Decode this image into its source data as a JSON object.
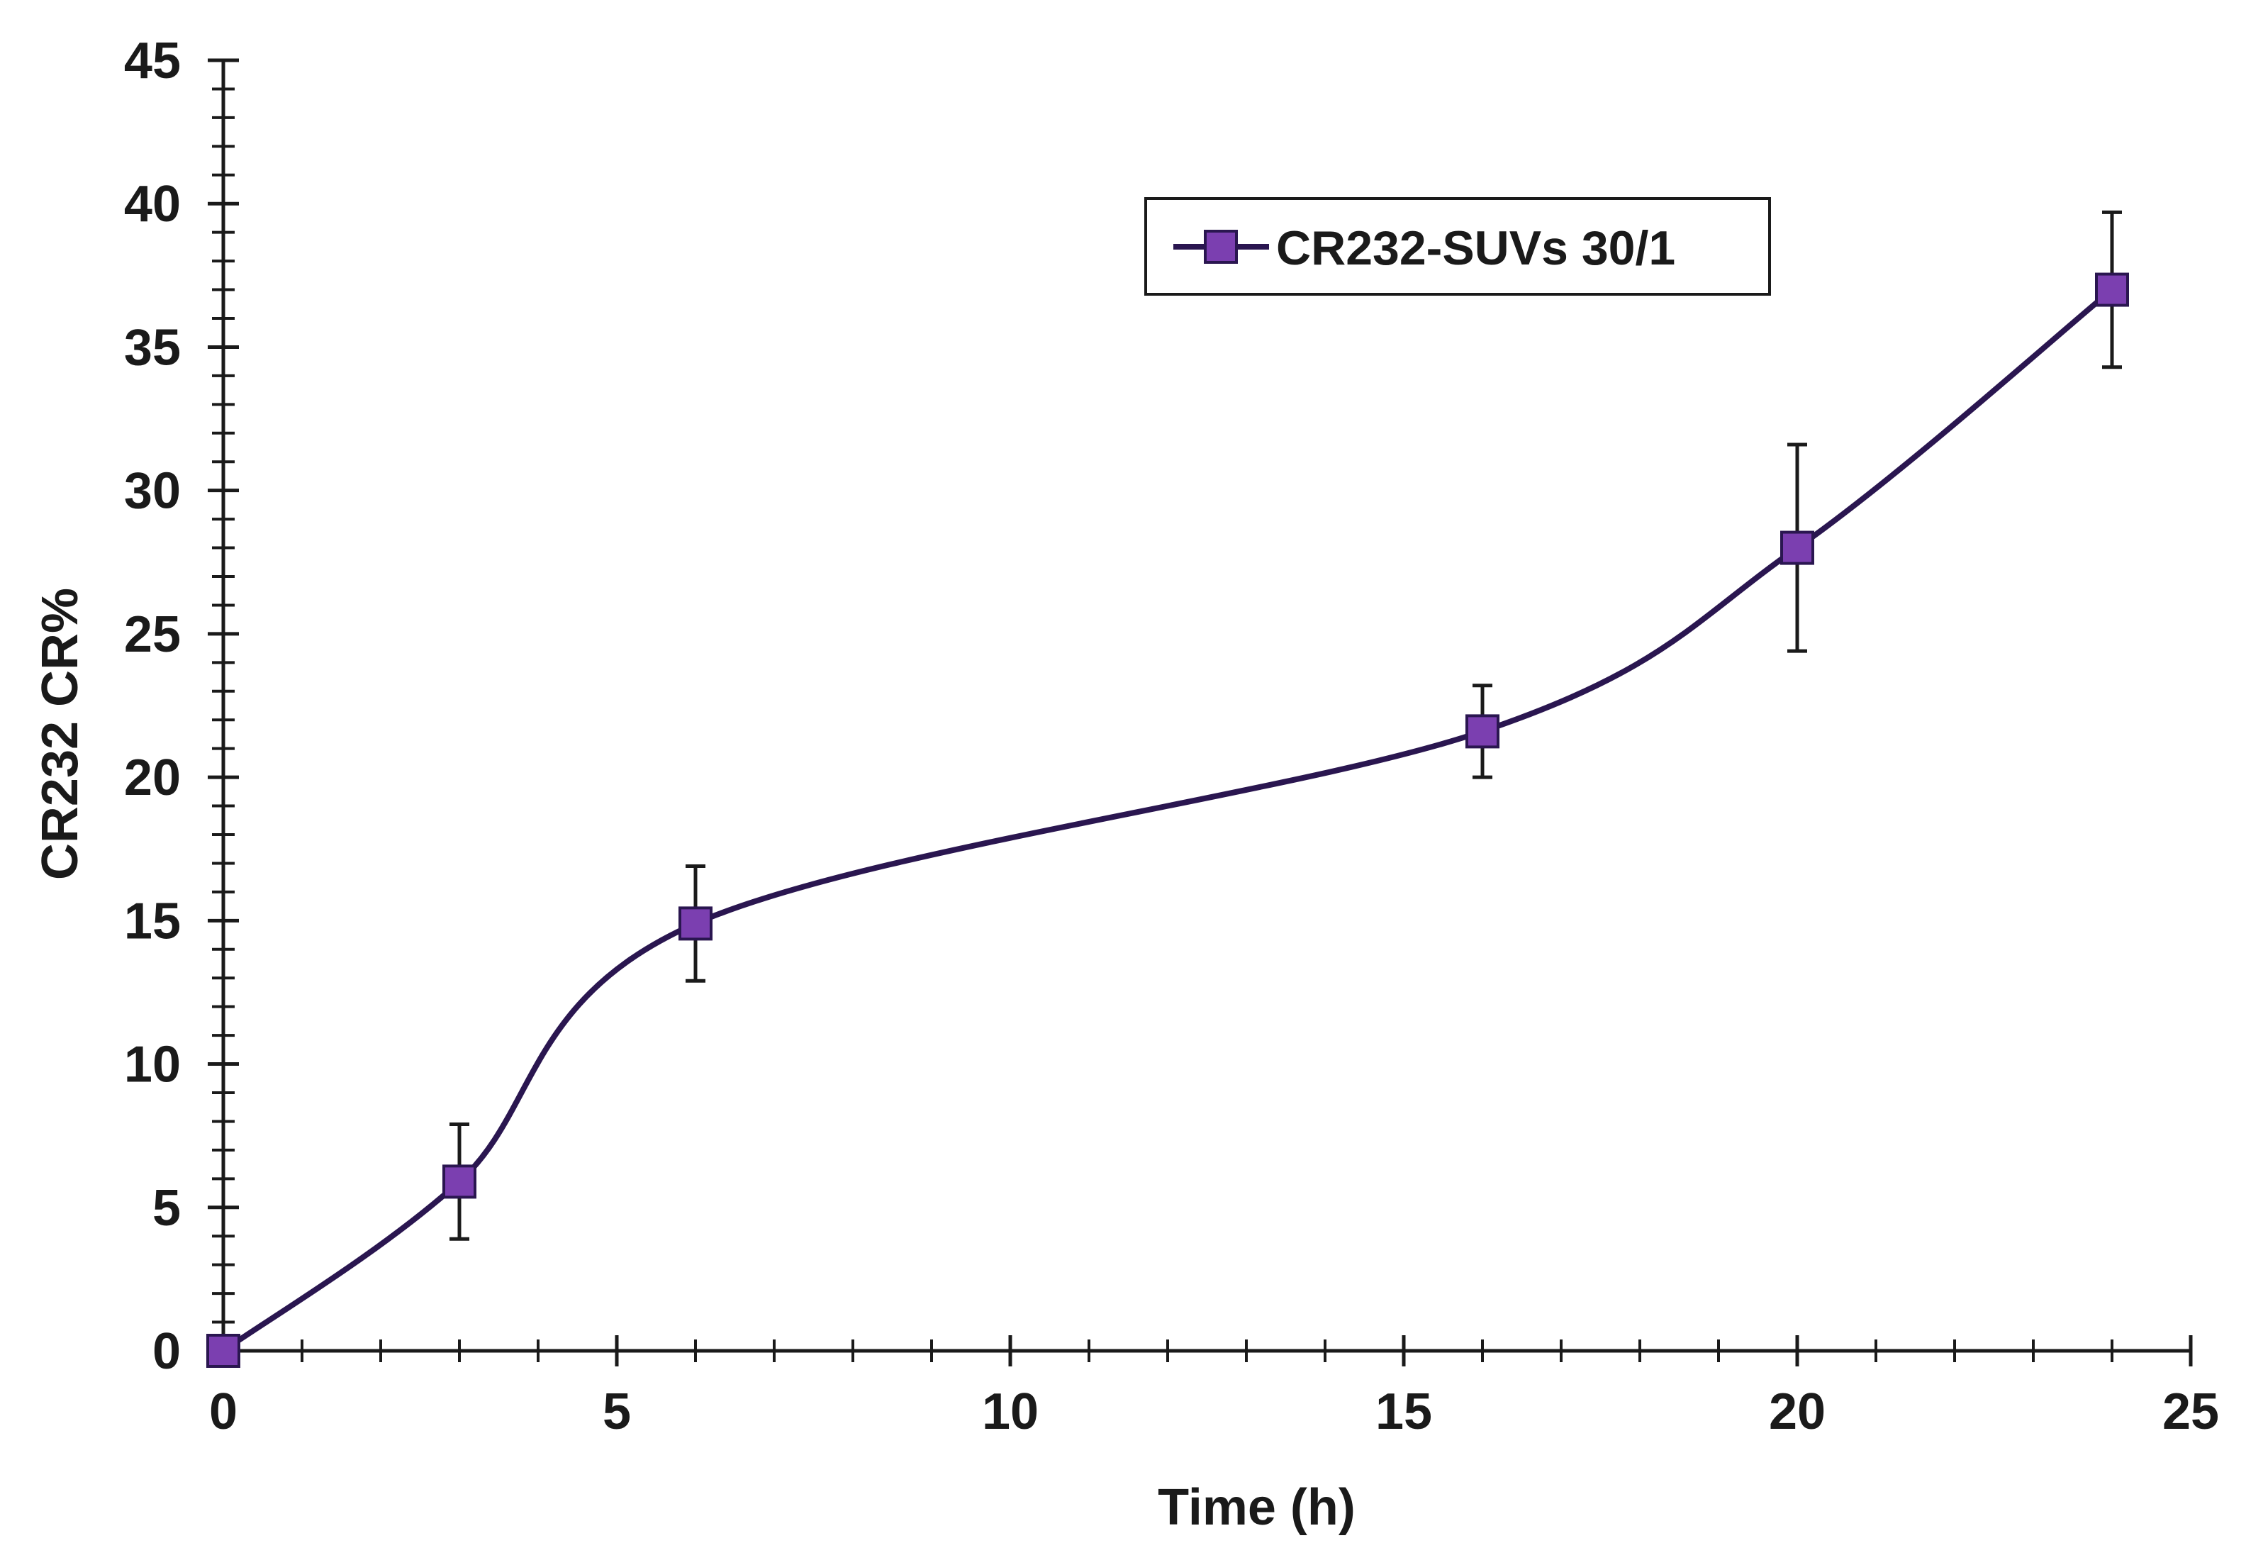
{
  "chart_data": {
    "type": "line",
    "title": "",
    "xlabel": "Time (h)",
    "ylabel": "CR232 CR%",
    "xlim": [
      0,
      25
    ],
    "ylim": [
      0,
      45
    ],
    "x_ticks": [
      "0",
      "5",
      "10",
      "15",
      "20",
      "25"
    ],
    "y_ticks": [
      "0",
      "5",
      "10",
      "15",
      "20",
      "25",
      "30",
      "35",
      "40",
      "45"
    ],
    "grid": false,
    "legend_position": "top-right",
    "series": [
      {
        "name": "CR232-SUVs 30/1",
        "color": "#7b3fb0",
        "line_color": "#2a1650",
        "marker": "square",
        "smooth": true,
        "x": [
          0,
          3,
          6,
          16,
          20,
          24
        ],
        "y": [
          0,
          5.9,
          14.9,
          21.6,
          28.0,
          37.0
        ],
        "error": [
          0,
          2.0,
          2.0,
          1.6,
          3.6,
          2.7
        ]
      }
    ]
  }
}
